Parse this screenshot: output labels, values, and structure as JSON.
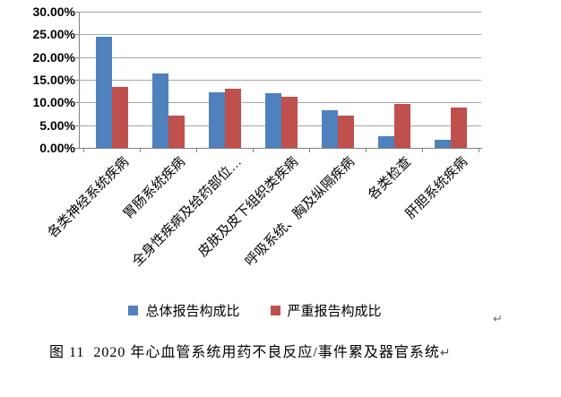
{
  "chart_data": {
    "type": "bar",
    "title": "",
    "categories": [
      "各类神经系统疾病",
      "胃肠系统疾病",
      "全身性疾病及给药部位…",
      "皮肤及皮下组织类疾病",
      "呼吸系统、胸及纵隔疾病",
      "各类检查",
      "肝胆系统疾病"
    ],
    "series": [
      {
        "name": "总体报告构成比",
        "color": "#4F81BD",
        "values": [
          24.4,
          16.3,
          12.2,
          12.0,
          8.3,
          2.5,
          1.8
        ]
      },
      {
        "name": "严重报告构成比",
        "color": "#C0504D",
        "values": [
          13.5,
          7.2,
          13.0,
          11.2,
          7.2,
          9.7,
          8.9
        ]
      }
    ],
    "ylim": [
      0,
      30
    ],
    "ytick_step": 5,
    "ytick_labels": [
      "0.00%",
      "5.00%",
      "10.00%",
      "15.00%",
      "20.00%",
      "25.00%",
      "30.00%"
    ],
    "grid": true,
    "legend_position": "bottom"
  },
  "caption": {
    "text": "图 11  2020 年心血管系统用药不良反应/事件累及器官系统"
  },
  "marks": {
    "paragraph_mark": "↵",
    "return_mark": "↵"
  },
  "colors": {
    "series_total": "#4F81BD",
    "series_serious": "#C0504D",
    "gridline": "#a6a6a6",
    "axis": "#808080"
  }
}
